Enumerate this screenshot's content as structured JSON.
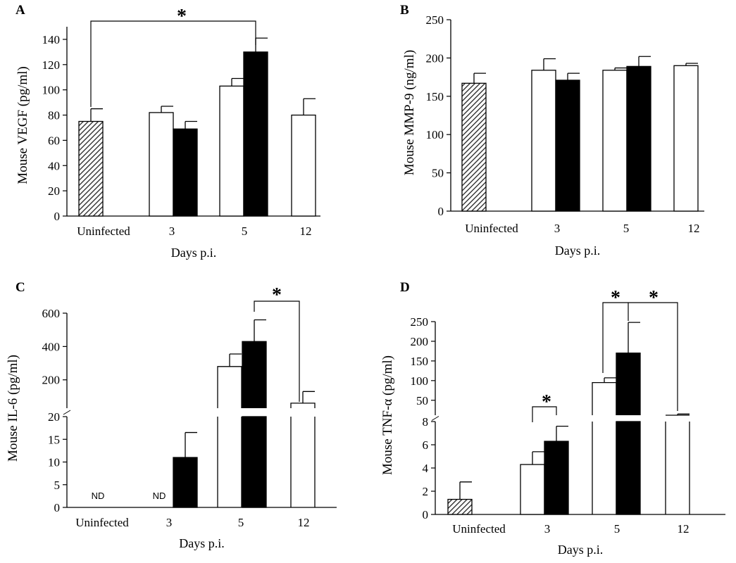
{
  "figure_title": "",
  "chart_data": [
    {
      "panel": "A",
      "type": "bar",
      "ylabel": "Mouse VEGF (pg/ml)",
      "xlabel": "Days p.i.",
      "categories": [
        "Uninfected",
        "3",
        "5",
        "12"
      ],
      "yticks": [
        "0",
        "20",
        "40",
        "60",
        "80",
        "100",
        "120",
        "140"
      ],
      "ylim": [
        0,
        150
      ],
      "series": [
        {
          "style": "hatched",
          "values": [
            75,
            null,
            null,
            null
          ],
          "errors": [
            10,
            null,
            null,
            null
          ]
        },
        {
          "style": "open",
          "values": [
            null,
            82,
            103,
            80
          ],
          "errors": [
            null,
            5,
            6,
            13
          ]
        },
        {
          "style": "filled",
          "values": [
            null,
            69,
            130,
            null
          ],
          "errors": [
            null,
            6,
            11,
            null
          ]
        }
      ],
      "annotations": [
        "*"
      ]
    },
    {
      "panel": "B",
      "type": "bar",
      "ylabel": "Mouse MMP-9  (ng/ml)",
      "xlabel": "Days p.i.",
      "categories": [
        "Uninfected",
        "3",
        "5",
        "12"
      ],
      "yticks": [
        "0",
        "50",
        "100",
        "150",
        "200",
        "250"
      ],
      "ylim": [
        0,
        250
      ],
      "series": [
        {
          "style": "hatched",
          "values": [
            167,
            null,
            null,
            null
          ],
          "errors": [
            13,
            null,
            null,
            null
          ]
        },
        {
          "style": "open",
          "values": [
            null,
            184,
            184,
            190
          ],
          "errors": [
            null,
            15,
            3,
            3
          ]
        },
        {
          "style": "filled",
          "values": [
            null,
            171,
            189,
            null
          ],
          "errors": [
            null,
            9,
            13,
            null
          ]
        }
      ],
      "annotations": []
    },
    {
      "panel": "C",
      "type": "bar",
      "ylabel": "Mouse IL-6  (pg/ml)",
      "xlabel": "Days p.i.",
      "categories": [
        "Uninfected",
        "3",
        "5",
        "12"
      ],
      "broken_axis": true,
      "yticks_lower": [
        "0",
        "5",
        "10",
        "15",
        "20"
      ],
      "ylim_lower": [
        0,
        20
      ],
      "yticks_upper": [
        "200",
        "400",
        "600"
      ],
      "ylim_upper": [
        30,
        600
      ],
      "series": [
        {
          "style": "hatched",
          "values": [
            null,
            null,
            null,
            null
          ],
          "errors": [
            null,
            null,
            null,
            null
          ]
        },
        {
          "style": "open",
          "values": [
            null,
            null,
            280,
            60
          ],
          "errors": [
            null,
            null,
            75,
            70
          ]
        },
        {
          "style": "filled",
          "values": [
            null,
            11,
            430,
            null
          ],
          "errors": [
            null,
            5.5,
            130,
            null
          ]
        }
      ],
      "nd_labels": [
        "ND",
        "ND"
      ],
      "annotations": [
        "*"
      ]
    },
    {
      "panel": "D",
      "type": "bar",
      "ylabel": "Mouse TNF-α  (pg/ml)",
      "xlabel": "Days p.i.",
      "categories": [
        "Uninfected",
        "3",
        "5",
        "12"
      ],
      "broken_axis": true,
      "yticks_lower": [
        "0",
        "2",
        "4",
        "6",
        "8"
      ],
      "ylim_lower": [
        0,
        8
      ],
      "yticks_upper": [
        "50",
        "100",
        "150",
        "200",
        "250"
      ],
      "ylim_upper": [
        12,
        250
      ],
      "series": [
        {
          "style": "hatched",
          "values": [
            1.3,
            null,
            null,
            null
          ],
          "errors": [
            1.5,
            null,
            null,
            null
          ]
        },
        {
          "style": "open",
          "values": [
            null,
            4.3,
            95,
            12
          ],
          "errors": [
            null,
            1.1,
            12,
            3
          ]
        },
        {
          "style": "filled",
          "values": [
            null,
            6.3,
            170,
            null
          ],
          "errors": [
            null,
            1.3,
            78,
            null
          ]
        }
      ],
      "annotations": [
        "*",
        "*",
        "*"
      ]
    }
  ]
}
